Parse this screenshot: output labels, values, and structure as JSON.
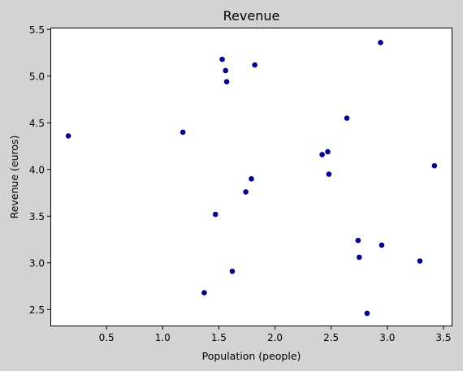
{
  "chart_data": {
    "type": "scatter",
    "title": "Revenue",
    "xlabel": "Population (people)",
    "ylabel": "Revenue (euros)",
    "xlim": [
      0.0,
      3.58
    ],
    "ylim": [
      2.32,
      5.52
    ],
    "x_ticks": [
      0.5,
      1.0,
      1.5,
      2.0,
      2.5,
      3.0,
      3.5
    ],
    "x_tick_labels": [
      "0.5",
      "1.0",
      "1.5",
      "2.0",
      "2.5",
      "3.0",
      "3.5"
    ],
    "y_ticks": [
      2.5,
      3.0,
      3.5,
      4.0,
      4.5,
      5.0,
      5.5
    ],
    "y_tick_labels": [
      "2.5",
      "3.0",
      "3.5",
      "4.0",
      "4.5",
      "5.0",
      "5.5"
    ],
    "grid": false,
    "point_color": "#00008b",
    "background_color": "#d3d3d3",
    "plot_background_color": "#ffffff",
    "points": [
      {
        "x": 0.16,
        "y": 4.36
      },
      {
        "x": 1.18,
        "y": 4.4
      },
      {
        "x": 1.37,
        "y": 2.68
      },
      {
        "x": 1.47,
        "y": 3.52
      },
      {
        "x": 1.53,
        "y": 5.18
      },
      {
        "x": 1.56,
        "y": 5.06
      },
      {
        "x": 1.57,
        "y": 4.94
      },
      {
        "x": 1.62,
        "y": 2.91
      },
      {
        "x": 1.74,
        "y": 3.76
      },
      {
        "x": 1.79,
        "y": 3.9
      },
      {
        "x": 1.82,
        "y": 5.12
      },
      {
        "x": 2.42,
        "y": 4.16
      },
      {
        "x": 2.47,
        "y": 4.19
      },
      {
        "x": 2.48,
        "y": 3.95
      },
      {
        "x": 2.64,
        "y": 4.55
      },
      {
        "x": 2.74,
        "y": 3.24
      },
      {
        "x": 2.75,
        "y": 3.06
      },
      {
        "x": 2.82,
        "y": 2.46
      },
      {
        "x": 2.94,
        "y": 5.36
      },
      {
        "x": 2.95,
        "y": 3.19
      },
      {
        "x": 3.29,
        "y": 3.02
      },
      {
        "x": 3.42,
        "y": 4.04
      }
    ]
  }
}
